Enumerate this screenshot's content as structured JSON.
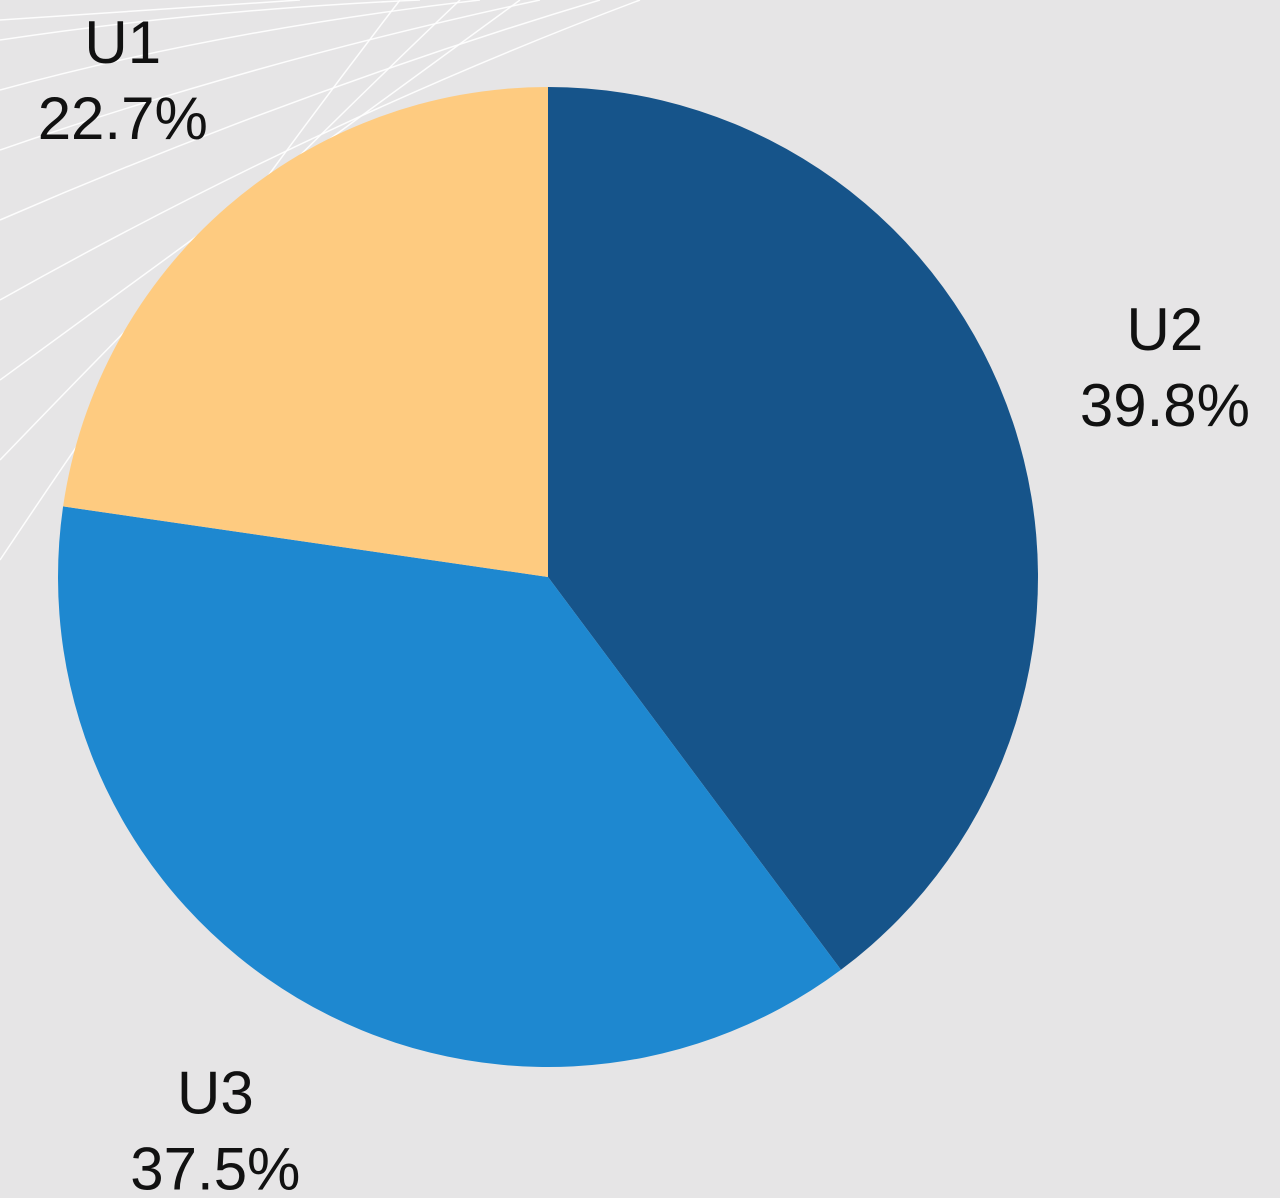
{
  "chart_data": {
    "type": "pie",
    "categories": [
      "U2",
      "U3",
      "U1"
    ],
    "values": [
      39.8,
      37.5,
      22.7
    ],
    "value_labels": [
      "39.8%",
      "37.5%",
      "22.7%"
    ],
    "colors": [
      "#16548a",
      "#1e88d0",
      "#fecb80"
    ]
  }
}
